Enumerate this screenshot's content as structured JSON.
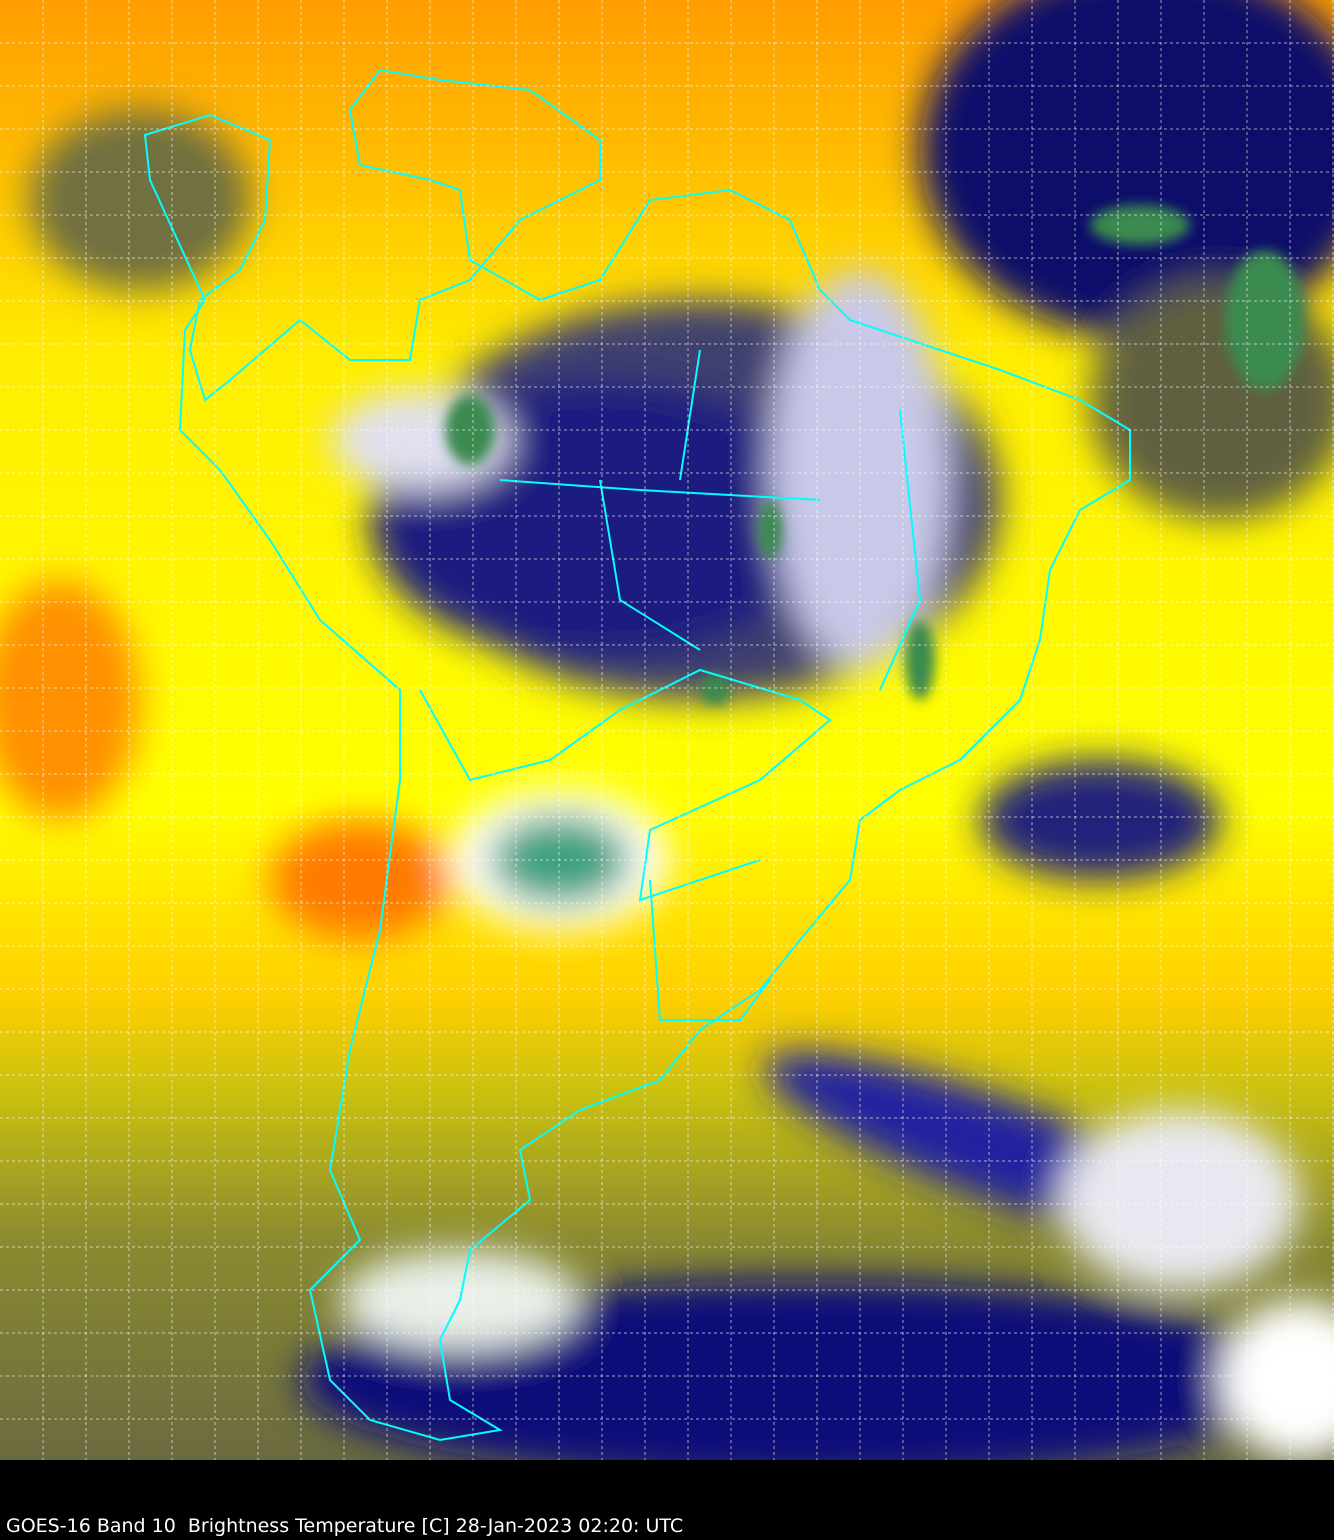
{
  "caption": "GOES-16 Band 10  Brightness Temperature [C] 28-Jan-2023 02:20: UTC",
  "colors": {
    "warm": "#ff9a00",
    "mid": "#ffff00",
    "cool": "#7a7a2a",
    "cold": "#0a0a78",
    "very_cold": "#ffffff",
    "coldest": "#2e8b57",
    "borders": "#00ffff",
    "grid": "#ffffff"
  }
}
